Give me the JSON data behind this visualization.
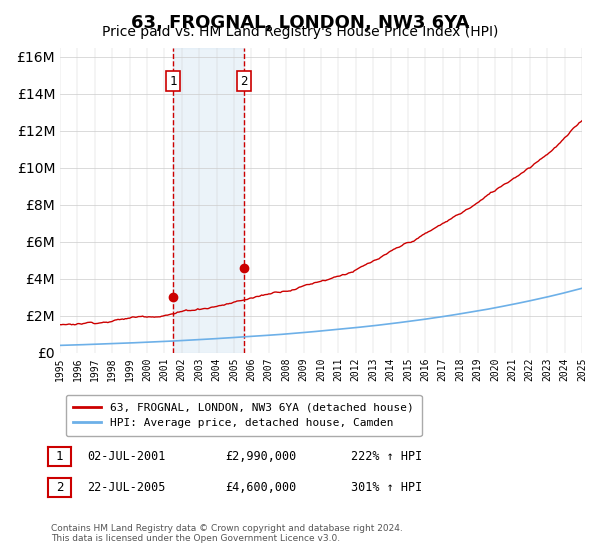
{
  "title": "63, FROGNAL, LONDON, NW3 6YA",
  "subtitle": "Price paid vs. HM Land Registry's House Price Index (HPI)",
  "legend_line1": "63, FROGNAL, LONDON, NW3 6YA (detached house)",
  "legend_line2": "HPI: Average price, detached house, Camden",
  "sale1_label": "1",
  "sale1_date": "02-JUL-2001",
  "sale1_price": "£2,990,000",
  "sale1_hpi": "222% ↑ HPI",
  "sale2_label": "2",
  "sale2_date": "22-JUL-2005",
  "sale2_price": "£4,600,000",
  "sale2_hpi": "301% ↑ HPI",
  "footnote1": "Contains HM Land Registry data © Crown copyright and database right 2024.",
  "footnote2": "This data is licensed under the Open Government Licence v3.0.",
  "sale1_year": 2001.5,
  "sale2_year": 2005.58,
  "sale1_value": 2990000,
  "sale2_value": 4600000,
  "ylim_max": 16500000,
  "hpi_color": "#6db0e8",
  "price_color": "#cc0000",
  "shade_color": "#c8ddf0",
  "vline_color": "#cc0000",
  "background_color": "#ffffff",
  "title_fontsize": 13,
  "subtitle_fontsize": 10
}
